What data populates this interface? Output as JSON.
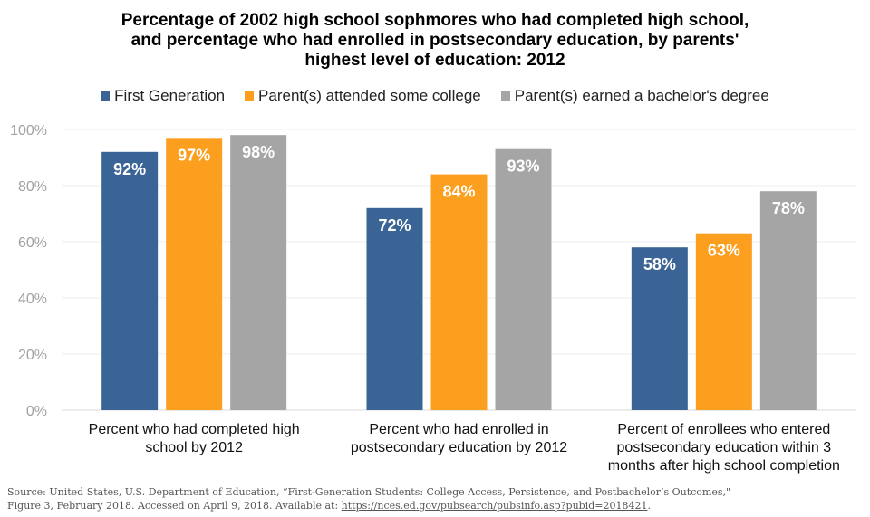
{
  "chart_data": {
    "type": "bar",
    "title": "Percentage of 2002 high school sophmores who had completed high school, and percentage who had enrolled in postsecondary education, by parents' highest level of education: 2012",
    "title_lines": [
      "Percentage of 2002 high school sophmores who had completed high school,",
      "and percentage who had enrolled in postsecondary education, by parents'",
      "highest level of education: 2012"
    ],
    "categories": [
      [
        "Percent who had completed high",
        "school by 2012"
      ],
      [
        "Percent who had enrolled in",
        "postsecondary education by 2012"
      ],
      [
        "Percent of enrollees who entered",
        "postsecondary education within 3",
        "months after high school completion"
      ]
    ],
    "series": [
      {
        "name": "First Generation",
        "color": "#3b6496",
        "values": [
          92,
          72,
          58
        ]
      },
      {
        "name": "Parent(s) attended some college",
        "color": "#fd9f1e",
        "values": [
          97,
          84,
          63
        ]
      },
      {
        "name": "Parent(s) earned a bachelor's degree",
        "color": "#a5a5a5",
        "values": [
          98,
          93,
          78
        ]
      }
    ],
    "data_labels": [
      [
        "92%",
        "72%",
        "58%"
      ],
      [
        "97%",
        "84%",
        "63%"
      ],
      [
        "98%",
        "93%",
        "78%"
      ]
    ],
    "ylim": [
      0,
      100
    ],
    "yticks": [
      "0%",
      "20%",
      "40%",
      "60%",
      "80%",
      "100%"
    ],
    "grid": true,
    "legend_position": "top",
    "xlabel": "",
    "ylabel": ""
  },
  "source": {
    "line1": "Source: United States, U.S. Department of Education, “First-Generation Students: College Access, Persistence, and Postbachelor’s Outcomes,\"",
    "line2_prefix": "Figure 3, February 2018. Accessed on April 9, 2018. Available at: ",
    "link": "https://nces.ed.gov/pubsearch/pubsinfo.asp?pubid=2018421",
    "line2_suffix": "."
  }
}
